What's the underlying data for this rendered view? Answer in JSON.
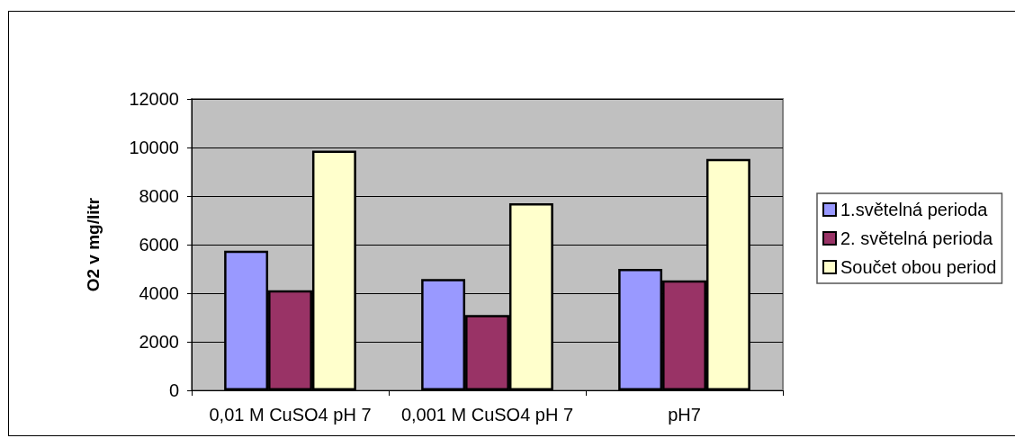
{
  "chart_data": {
    "type": "bar",
    "ylabel": "O2 v mg/litr",
    "categories": [
      "0,01 M CuSO4 pH 7",
      "0,001 M CuSO4 pH 7",
      "pH7"
    ],
    "series": [
      {
        "name": "1.světelná perioda",
        "color": "#9999ff",
        "values": [
          5750,
          4580,
          5000
        ]
      },
      {
        "name": "2. světelná perioda",
        "color": "#993366",
        "values": [
          4120,
          3100,
          4530
        ]
      },
      {
        "name": "Součet obou period",
        "color": "#ffffcc",
        "values": [
          9870,
          7700,
          9530
        ]
      }
    ],
    "ylim": [
      0,
      12000
    ],
    "yticks": [
      0,
      2000,
      4000,
      6000,
      8000,
      10000,
      12000
    ],
    "grid": "y",
    "legend": "right"
  }
}
